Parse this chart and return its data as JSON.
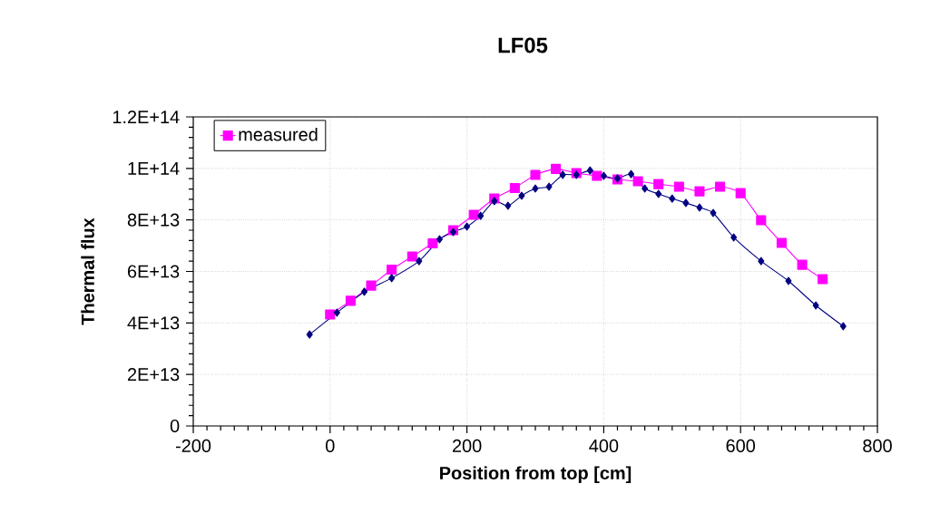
{
  "chart_data": {
    "type": "line",
    "title": "LF05",
    "xlabel": "Position from top [cm]",
    "ylabel": "Thermal flux",
    "xlim": [
      -200,
      800
    ],
    "xticks": [
      -200,
      0,
      200,
      400,
      600,
      800
    ],
    "ylim": [
      0,
      120000000000000.0
    ],
    "yticks": [
      0,
      {
        "value": 20000000000000.0,
        "label": "2E+13"
      },
      {
        "value": 40000000000000.0,
        "label": "4E+13"
      },
      {
        "value": 60000000000000.0,
        "label": "6E+13"
      },
      {
        "value": 80000000000000.0,
        "label": "8E+13"
      },
      {
        "value": 100000000000000.0,
        "label": "1E+14"
      },
      {
        "value": 120000000000000.0,
        "label": "1.2E+14"
      }
    ],
    "grid": true,
    "legend": "top left",
    "series": [
      {
        "name": "measured",
        "color": "#ff00ff",
        "marker": "square",
        "x": [
          0,
          30,
          60,
          90,
          120,
          150,
          180,
          210,
          240,
          270,
          300,
          330,
          360,
          390,
          420,
          450,
          480,
          510,
          540,
          570,
          600,
          630,
          660,
          690,
          720
        ],
        "values": [
          43300000000000.0,
          48600000000000.0,
          54500000000000.0,
          60700000000000.0,
          65800000000000.0,
          70900000000000.0,
          76000000000000.0,
          82000000000000.0,
          88300000000000.0,
          92400000000000.0,
          97500000000000.0,
          99800000000000.0,
          98200000000000.0,
          97100000000000.0,
          95700000000000.0,
          95000000000000.0,
          93900000000000.0,
          92900000000000.0,
          91100000000000.0,
          92900000000000.0,
          90400000000000.0,
          79900000000000.0,
          71100000000000.0,
          62600000000000.0,
          57000000000000.0
        ]
      },
      {
        "color": "#000080",
        "marker": "diamond",
        "x": [
          -30,
          10,
          50,
          90,
          130,
          160,
          180,
          200,
          220,
          240,
          260,
          280,
          300,
          320,
          340,
          360,
          380,
          400,
          420,
          440,
          460,
          480,
          500,
          520,
          540,
          560,
          590,
          630,
          670,
          710,
          750
        ],
        "values": [
          35500000000000.0,
          44000000000000.0,
          52100000000000.0,
          57400000000000.0,
          64000000000000.0,
          72500000000000.0,
          75300000000000.0,
          77400000000000.0,
          81600000000000.0,
          87300000000000.0,
          85500000000000.0,
          89400000000000.0,
          92200000000000.0,
          92900000000000.0,
          97500000000000.0,
          97500000000000.0,
          99200000000000.0,
          97100000000000.0,
          96100000000000.0,
          97800000000000.0,
          92200000000000.0,
          90100000000000.0,
          88300000000000.0,
          86600000000000.0,
          84800000000000.0,
          82700000000000.0,
          73200000000000.0,
          64000000000000.0,
          56300000000000.0,
          46800000000000.0,
          38700000000000.0
        ]
      }
    ]
  }
}
